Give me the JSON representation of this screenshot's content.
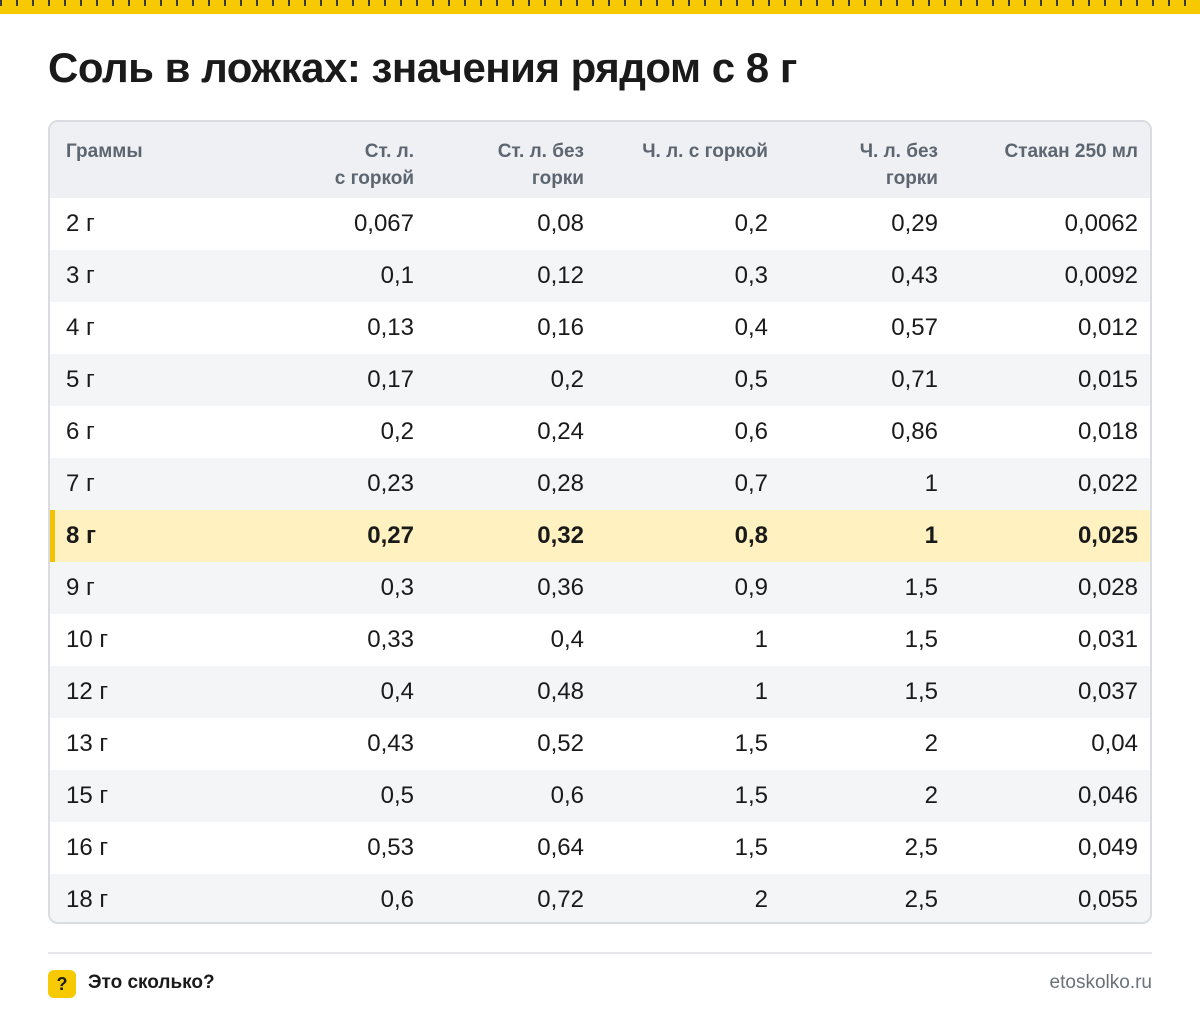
{
  "title": "Соль в ложках: значения рядом с 8 г",
  "table": {
    "headers": [
      [
        "Граммы"
      ],
      [
        "Ст. л.",
        "с горкой"
      ],
      [
        "Ст. л. без",
        "горки"
      ],
      [
        "Ч. л. с горкой"
      ],
      [
        "Ч. л. без",
        "горки"
      ],
      [
        "Стакан 250 мл"
      ]
    ],
    "rows": [
      [
        "2 г",
        "0,067",
        "0,08",
        "0,2",
        "0,29",
        "0,0062"
      ],
      [
        "3 г",
        "0,1",
        "0,12",
        "0,3",
        "0,43",
        "0,0092"
      ],
      [
        "4 г",
        "0,13",
        "0,16",
        "0,4",
        "0,57",
        "0,012"
      ],
      [
        "5 г",
        "0,17",
        "0,2",
        "0,5",
        "0,71",
        "0,015"
      ],
      [
        "6 г",
        "0,2",
        "0,24",
        "0,6",
        "0,86",
        "0,018"
      ],
      [
        "7 г",
        "0,23",
        "0,28",
        "0,7",
        "1",
        "0,022"
      ],
      [
        "8 г",
        "0,27",
        "0,32",
        "0,8",
        "1",
        "0,025"
      ],
      [
        "9 г",
        "0,3",
        "0,36",
        "0,9",
        "1,5",
        "0,028"
      ],
      [
        "10 г",
        "0,33",
        "0,4",
        "1",
        "1,5",
        "0,031"
      ],
      [
        "12 г",
        "0,4",
        "0,48",
        "1",
        "1,5",
        "0,037"
      ],
      [
        "13 г",
        "0,43",
        "0,52",
        "1,5",
        "2",
        "0,04"
      ],
      [
        "15 г",
        "0,5",
        "0,6",
        "1,5",
        "2",
        "0,046"
      ],
      [
        "16 г",
        "0,53",
        "0,64",
        "1,5",
        "2,5",
        "0,049"
      ],
      [
        "18 г",
        "0,6",
        "0,72",
        "2",
        "2,5",
        "0,055"
      ]
    ],
    "highlight_row": "8 г"
  },
  "footer": {
    "badge_icon": "?",
    "brand": "Это сколько?",
    "site": "etoskolko.ru"
  },
  "colors": {
    "accent": "#f6c900",
    "highlight_row": "#fff2c0",
    "header_bg": "#eef0f3",
    "stripe_bg": "#f4f5f7"
  }
}
